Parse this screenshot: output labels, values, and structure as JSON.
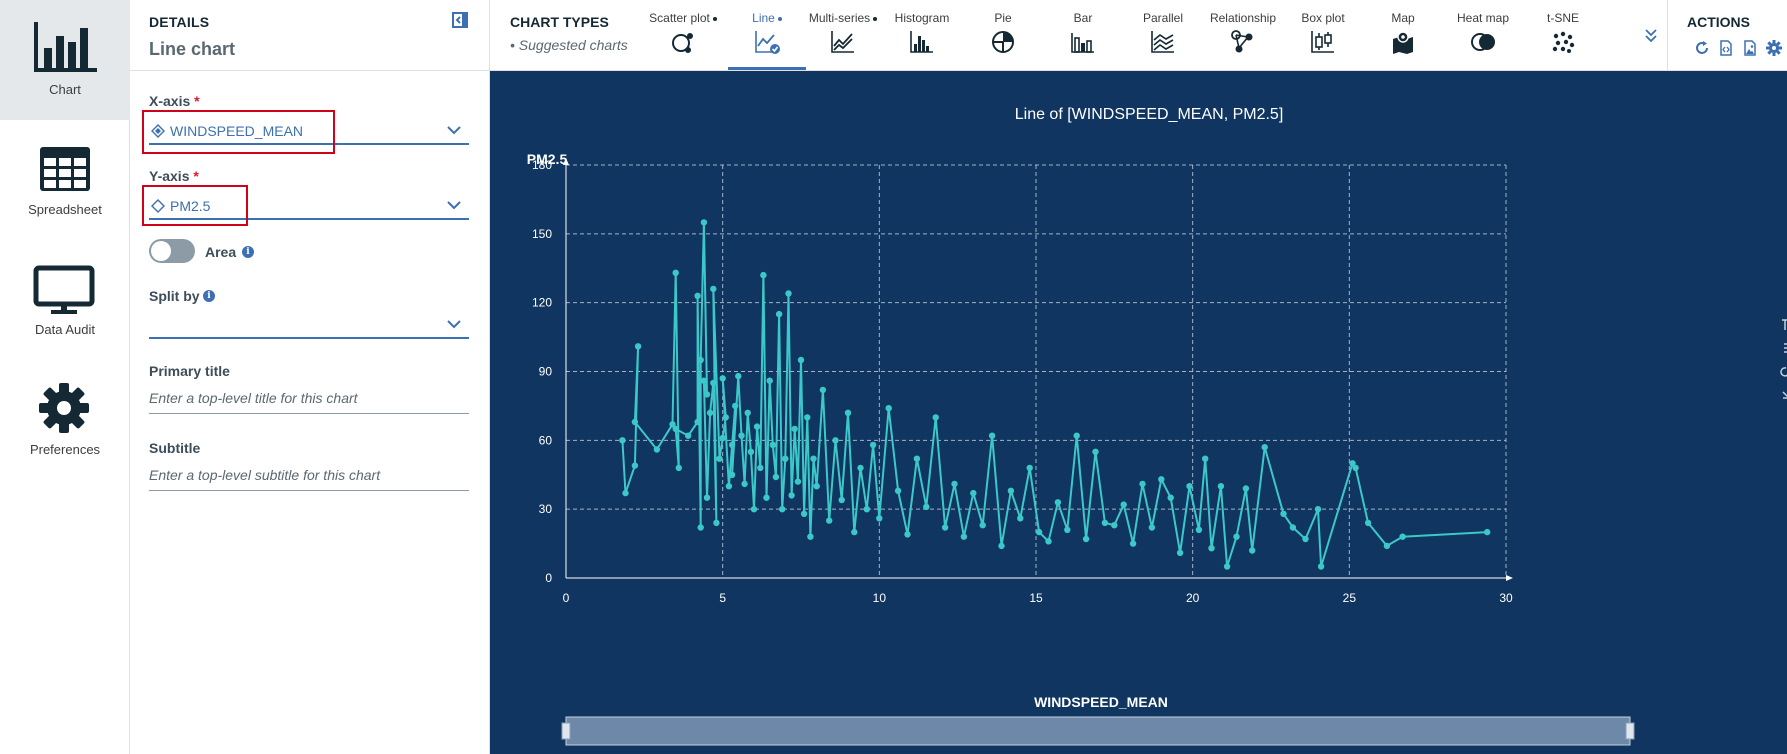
{
  "nav": {
    "items": [
      {
        "label": "Chart",
        "icon": "bar-chart-icon",
        "active": true
      },
      {
        "label": "Spreadsheet",
        "icon": "table-icon",
        "active": false
      },
      {
        "label": "Data Audit",
        "icon": "monitor-icon",
        "active": false
      },
      {
        "label": "Preferences",
        "icon": "gear-icon",
        "active": false
      }
    ]
  },
  "details": {
    "caption": "DETAILS",
    "chart_kind": "Line chart",
    "x_axis": {
      "label": "X-axis",
      "required_mark": "*",
      "value": "WINDSPEED_MEAN",
      "icon": "continuous-field-icon"
    },
    "y_axis": {
      "label": "Y-axis",
      "required_mark": "*",
      "value": "PM2.5",
      "icon": "continuous-field-icon"
    },
    "area": {
      "label": "Area",
      "on": false
    },
    "split_by": {
      "label": "Split by",
      "value": ""
    },
    "primary_title": {
      "label": "Primary title",
      "placeholder": "Enter a top-level title for this chart"
    },
    "subtitle": {
      "label": "Subtitle",
      "placeholder": "Enter a top-level subtitle for this chart"
    }
  },
  "chart_types": {
    "title": "CHART TYPES",
    "suggested_label": "• Suggested charts",
    "items": [
      {
        "label": "Scatter plot",
        "suggested": true,
        "icon": "scatter-plot-icon"
      },
      {
        "label": "Line",
        "suggested": true,
        "selected": true,
        "icon": "line-chart-icon"
      },
      {
        "label": "Multi-series",
        "suggested": true,
        "icon": "multi-series-icon"
      },
      {
        "label": "Histogram",
        "suggested": false,
        "icon": "histogram-icon"
      },
      {
        "label": "Pie",
        "suggested": false,
        "icon": "pie-chart-icon"
      },
      {
        "label": "Bar",
        "suggested": false,
        "icon": "bar-icon"
      },
      {
        "label": "Parallel",
        "suggested": false,
        "icon": "parallel-icon"
      },
      {
        "label": "Relationship",
        "suggested": false,
        "icon": "relationship-icon"
      },
      {
        "label": "Box plot",
        "suggested": false,
        "icon": "box-plot-icon"
      },
      {
        "label": "Map",
        "suggested": false,
        "icon": "map-icon"
      },
      {
        "label": "Heat map",
        "suggested": false,
        "icon": "heat-map-icon"
      },
      {
        "label": "t-SNE",
        "suggested": false,
        "icon": "tsne-icon"
      }
    ]
  },
  "actions": {
    "title": "ACTIONS",
    "icons": [
      "refresh-icon",
      "code-export-icon",
      "image-export-icon",
      "settings-icon"
    ]
  },
  "colors": {
    "chart_bg": "#0f3560",
    "line": "#3cc8c8",
    "accent": "#3d70b2",
    "highlight_box": "#d0021b"
  },
  "chart_data": {
    "type": "line",
    "title": "Line of [WINDSPEED_MEAN, PM2.5]",
    "xlabel": "WINDSPEED_MEAN",
    "ylabel": "PM2.5",
    "xlim": [
      0,
      30
    ],
    "ylim": [
      0,
      180
    ],
    "xticks": [
      0,
      5,
      10,
      15,
      20,
      25,
      30
    ],
    "yticks": [
      0,
      30,
      60,
      90,
      120,
      150,
      180
    ],
    "grid": true,
    "series": [
      {
        "values_note": "",
        "x": [
          1.8,
          1.9,
          2.2,
          2.3,
          2.2,
          2.9,
          3.4,
          3.5,
          3.6,
          3.5,
          3.9,
          4.2,
          4.2,
          4.3,
          4.3,
          4.4,
          4.5,
          4.4,
          4.5,
          4.6,
          4.7,
          4.8,
          4.7,
          4.9,
          5.0,
          5.1,
          5.0,
          5.2,
          5.3,
          5.4,
          5.3,
          5.5,
          5.6,
          5.7,
          5.8,
          5.9,
          6.0,
          6.1,
          6.2,
          6.3,
          6.4,
          6.5,
          6.6,
          6.7,
          6.8,
          6.9,
          7.0,
          7.1,
          7.2,
          7.3,
          7.4,
          7.5,
          7.6,
          7.7,
          7.8,
          7.9,
          8.0,
          8.2,
          8.4,
          8.6,
          8.8,
          9.0,
          9.2,
          9.4,
          9.6,
          9.8,
          10.0,
          10.3,
          10.6,
          10.9,
          11.2,
          11.5,
          11.8,
          12.1,
          12.4,
          12.7,
          13.0,
          13.3,
          13.6,
          13.9,
          14.2,
          14.5,
          14.8,
          15.1,
          15.4,
          15.7,
          16.0,
          16.3,
          16.6,
          16.9,
          17.2,
          17.5,
          17.8,
          18.1,
          18.4,
          18.7,
          19.0,
          19.3,
          19.6,
          19.9,
          20.2,
          20.4,
          20.6,
          20.9,
          21.1,
          21.4,
          21.7,
          21.9,
          22.3,
          22.9,
          23.2,
          23.6,
          24.0,
          24.1,
          25.1,
          25.2,
          25.6,
          26.2,
          26.7,
          29.4
        ],
        "y": [
          60,
          37,
          49,
          101,
          68,
          56,
          67,
          133,
          48,
          65,
          62,
          68,
          123,
          22,
          95,
          155,
          80,
          86,
          35,
          72,
          85,
          24,
          126,
          52,
          61,
          70,
          87,
          40,
          58,
          75,
          45,
          88,
          62,
          41,
          72,
          55,
          30,
          66,
          48,
          132,
          35,
          86,
          58,
          44,
          115,
          30,
          52,
          124,
          36,
          65,
          42,
          95,
          28,
          70,
          18,
          52,
          40,
          82,
          25,
          60,
          34,
          72,
          20,
          48,
          30,
          58,
          26,
          74,
          38,
          19,
          52,
          31,
          70,
          22,
          41,
          18,
          37,
          23,
          62,
          14,
          38,
          26,
          48,
          20,
          16,
          33,
          21,
          62,
          17,
          55,
          24,
          23,
          32,
          15,
          41,
          22,
          43,
          35,
          11,
          40,
          21,
          52,
          13,
          40,
          5,
          18,
          39,
          12,
          57,
          28,
          22,
          17,
          30,
          5,
          50,
          48,
          24,
          14,
          18,
          20
        ]
      }
    ]
  }
}
